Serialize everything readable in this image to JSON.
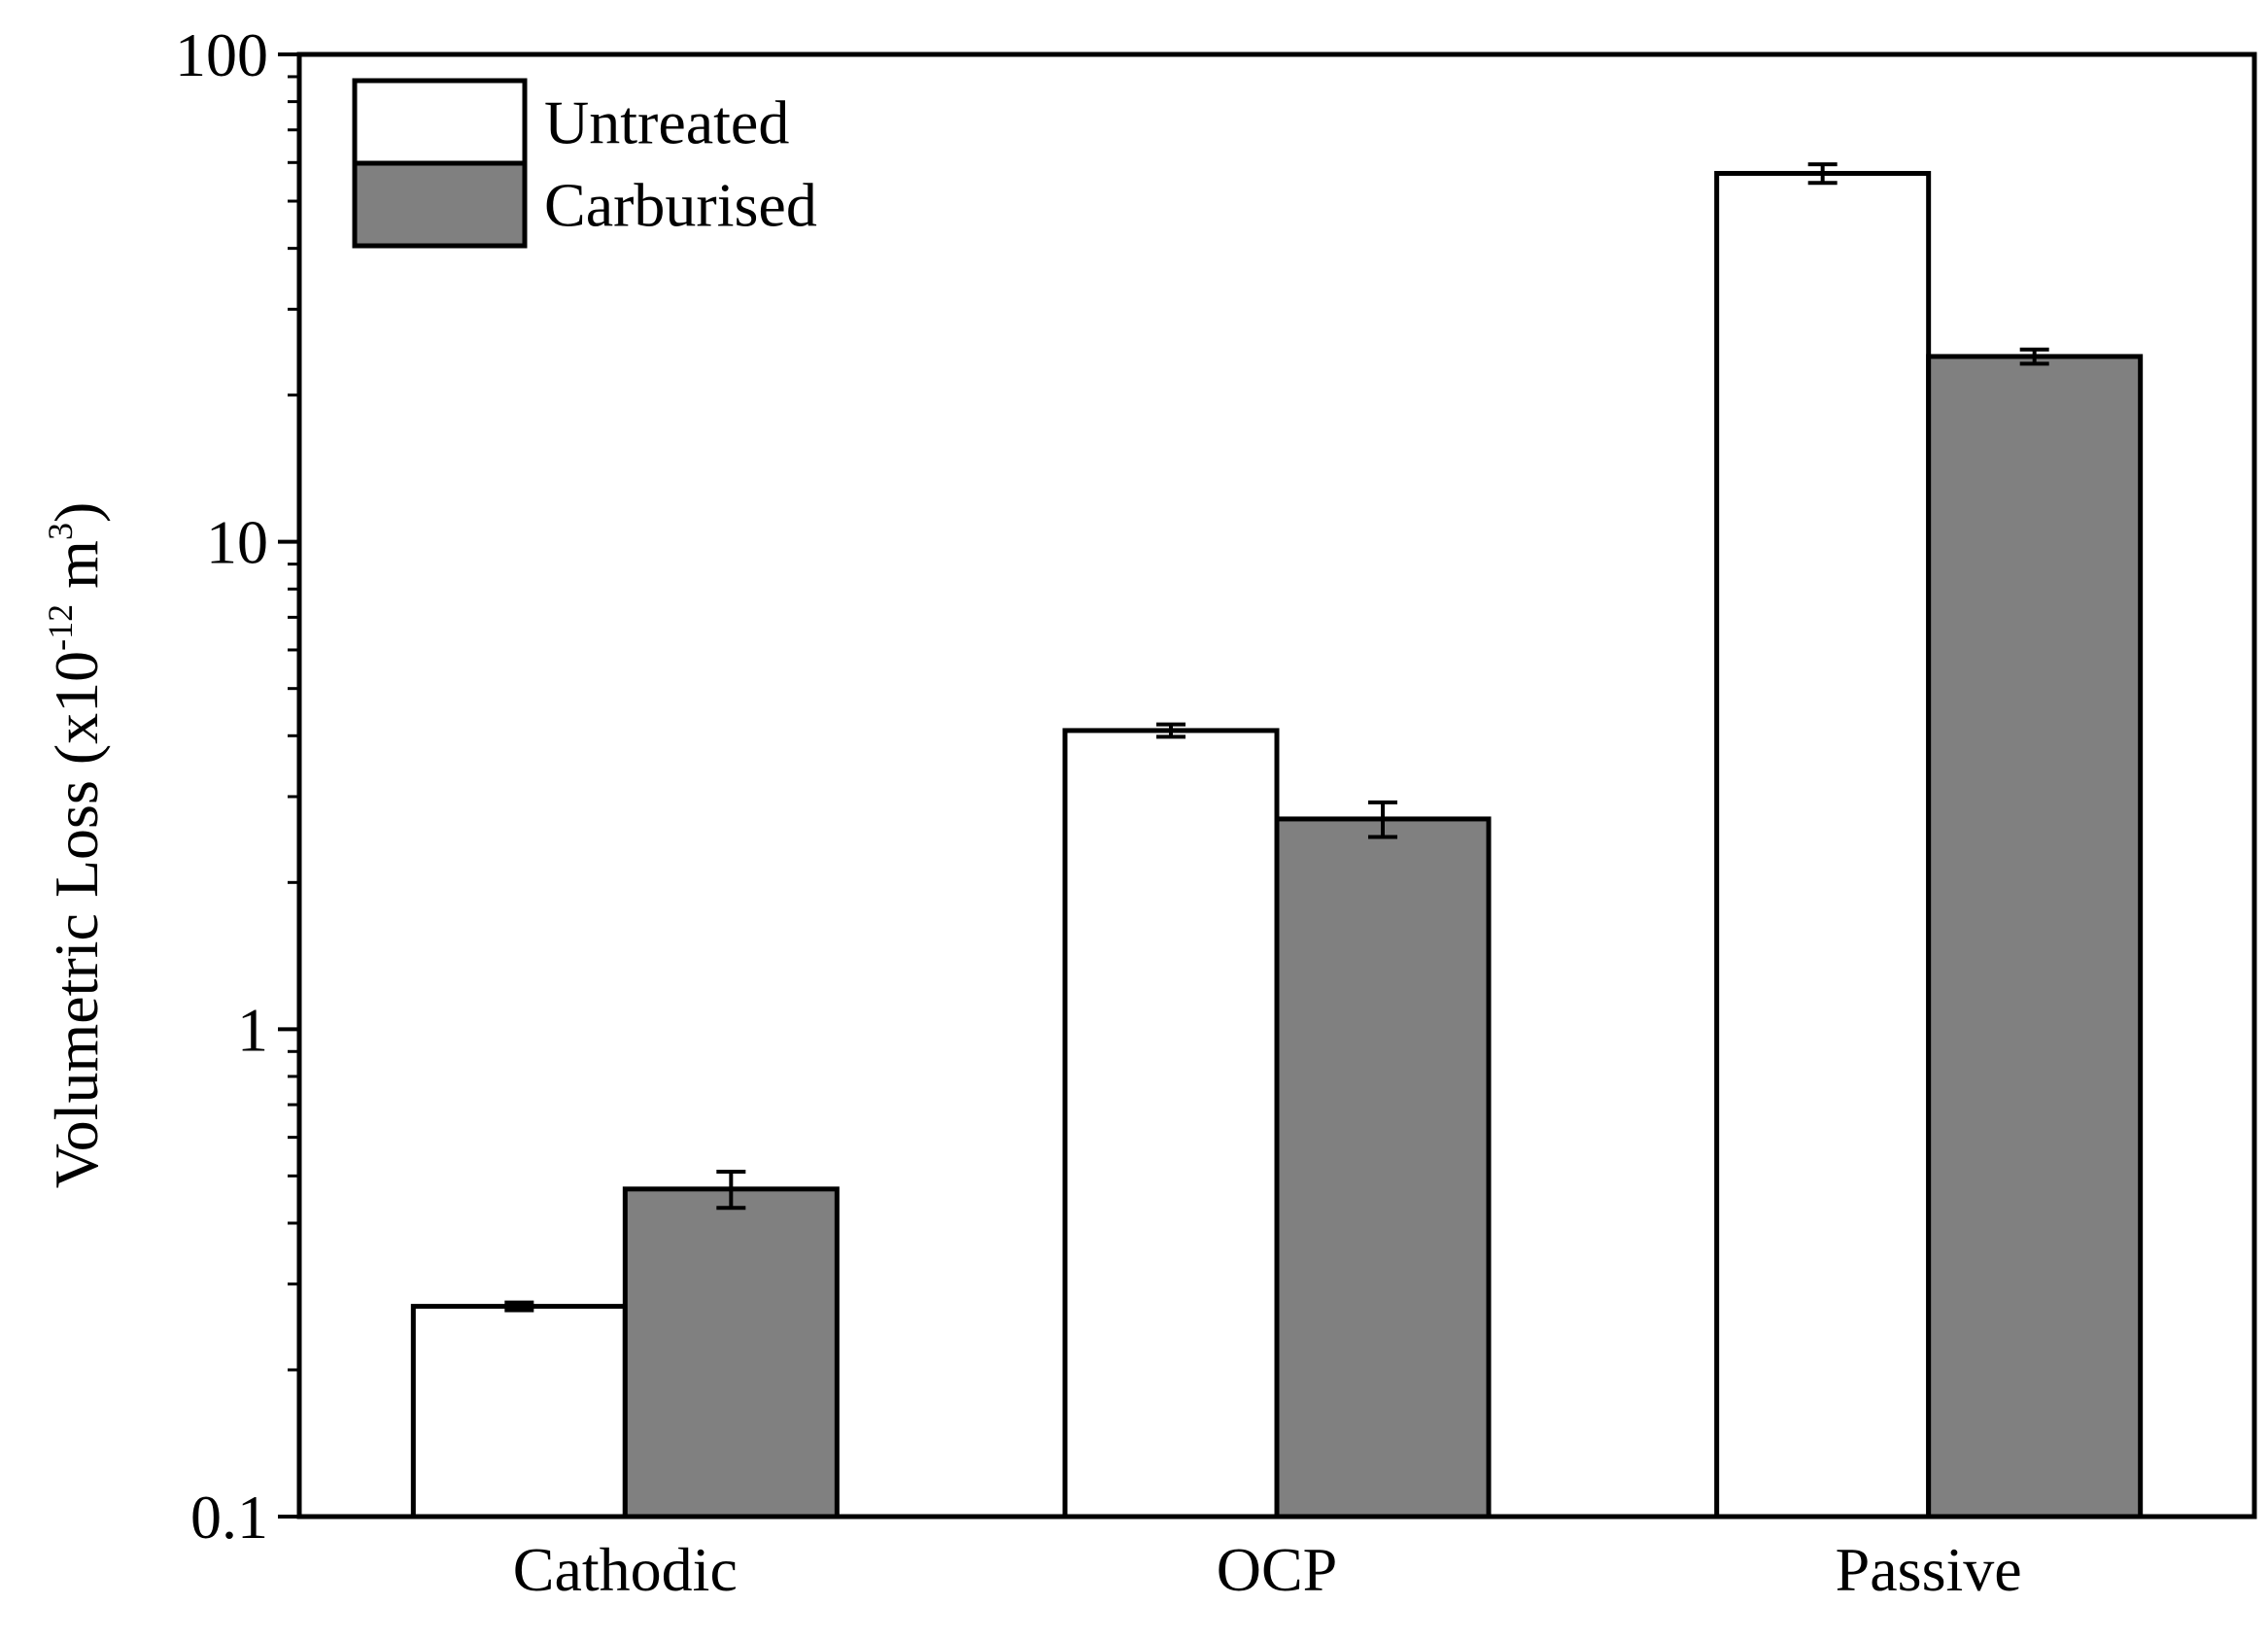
{
  "chart_data": {
    "type": "bar",
    "title": "",
    "xlabel": "",
    "ylabel": {
      "prefix": "Volumetric Loss (x10",
      "exponent": "-12",
      "unit": " m",
      "unit_exponent": "3",
      "suffix": ")"
    },
    "yscale": "log",
    "ylim": [
      0.1,
      100
    ],
    "yticks": [
      {
        "value": 0.1,
        "label": "0.1"
      },
      {
        "value": 1,
        "label": "1"
      },
      {
        "value": 10,
        "label": "10"
      },
      {
        "value": 100,
        "label": "100"
      }
    ],
    "categories": [
      "Cathodic",
      "OCP",
      "Passive"
    ],
    "series": [
      {
        "name": "Untreated",
        "color": "#ffffff",
        "values": [
          0.27,
          4.1,
          57
        ],
        "errors": [
          0.005,
          0.12,
          2.5
        ]
      },
      {
        "name": "Carburised",
        "color": "#808080",
        "values": [
          0.47,
          2.7,
          24
        ],
        "errors": [
          0.04,
          0.22,
          0.8
        ]
      }
    ],
    "legend": "top-left",
    "grid": false
  }
}
